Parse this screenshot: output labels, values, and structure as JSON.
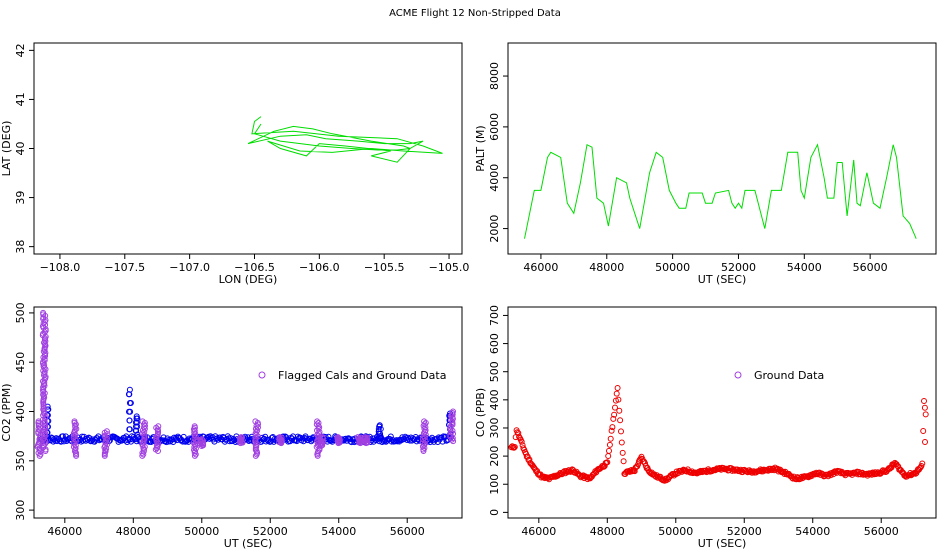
{
  "figure": {
    "title": "ACME Flight  12  Non-Stripped Data"
  },
  "colors": {
    "green": "#00dd00",
    "blue": "#0000ee",
    "purple": "#a040e0",
    "red": "#ee0000"
  },
  "chart_data": [
    {
      "type": "line",
      "xlabel": "LON (DEG)",
      "ylabel": "LAT (DEG)",
      "xlim": [
        -108.2,
        -104.9
      ],
      "ylim": [
        37.85,
        42.15
      ],
      "xticks": [
        -108.0,
        -107.5,
        -107.0,
        -106.5,
        -106.0,
        -105.5,
        -105.0
      ],
      "xtick_labels": [
        "−108.0",
        "−107.5",
        "−107.0",
        "−106.5",
        "−106.0",
        "−105.5",
        "−105.0"
      ],
      "yticks": [
        38,
        39,
        40,
        41,
        42
      ],
      "ytick_labels": [
        "38",
        "39",
        "40",
        "41",
        "42"
      ],
      "series": [
        {
          "color": "green",
          "points": [
            [
              -106.45,
              40.65
            ],
            [
              -106.5,
              40.55
            ],
            [
              -106.52,
              40.3
            ],
            [
              -106.2,
              40.35
            ],
            [
              -105.85,
              40.25
            ],
            [
              -105.4,
              40.2
            ],
            [
              -105.2,
              40.05
            ],
            [
              -105.05,
              39.9
            ],
            [
              -105.35,
              39.95
            ],
            [
              -105.6,
              40.0
            ],
            [
              -105.9,
              39.92
            ],
            [
              -106.15,
              39.95
            ],
            [
              -106.4,
              40.15
            ],
            [
              -106.3,
              40.0
            ],
            [
              -106.1,
              39.85
            ],
            [
              -106.0,
              40.1
            ],
            [
              -105.8,
              40.05
            ],
            [
              -105.45,
              39.95
            ],
            [
              -105.6,
              39.85
            ],
            [
              -105.4,
              39.72
            ],
            [
              -105.3,
              40.0
            ],
            [
              -105.2,
              40.15
            ],
            [
              -105.3,
              40.1
            ],
            [
              -105.5,
              40.1
            ],
            [
              -105.7,
              40.15
            ],
            [
              -105.95,
              40.2
            ],
            [
              -106.1,
              40.28
            ],
            [
              -106.3,
              40.25
            ],
            [
              -106.55,
              40.1
            ],
            [
              -106.35,
              40.35
            ],
            [
              -106.2,
              40.45
            ],
            [
              -106.05,
              40.4
            ],
            [
              -105.9,
              40.3
            ],
            [
              -105.6,
              40.15
            ],
            [
              -105.35,
              40.05
            ],
            [
              -105.3,
              40.0
            ],
            [
              -105.4,
              39.97
            ],
            [
              -105.55,
              39.97
            ],
            [
              -105.75,
              40.0
            ],
            [
              -106.0,
              40.05
            ],
            [
              -106.3,
              40.15
            ],
            [
              -106.5,
              40.3
            ],
            [
              -106.45,
              40.5
            ]
          ]
        }
      ]
    },
    {
      "type": "line",
      "xlabel": "UT (SEC)",
      "ylabel": "PALT (M)",
      "xlim": [
        45000,
        58000
      ],
      "ylim": [
        1000,
        9300
      ],
      "xticks": [
        46000,
        48000,
        50000,
        52000,
        54000,
        56000
      ],
      "xtick_labels": [
        "46000",
        "48000",
        "50000",
        "52000",
        "54000",
        "56000"
      ],
      "yticks": [
        2000,
        4000,
        6000,
        8000
      ],
      "ytick_labels": [
        "2000",
        "4000",
        "6000",
        "8000"
      ],
      "series": [
        {
          "color": "green",
          "points": [
            [
              45500,
              1600
            ],
            [
              45800,
              3500
            ],
            [
              46000,
              3500
            ],
            [
              46200,
              4800
            ],
            [
              46300,
              5000
            ],
            [
              46600,
              4800
            ],
            [
              46800,
              3000
            ],
            [
              47000,
              2600
            ],
            [
              47200,
              3800
            ],
            [
              47400,
              5300
            ],
            [
              47550,
              5200
            ],
            [
              47700,
              3200
            ],
            [
              47900,
              3000
            ],
            [
              48050,
              2100
            ],
            [
              48300,
              4000
            ],
            [
              48600,
              3800
            ],
            [
              48700,
              3200
            ],
            [
              49000,
              2000
            ],
            [
              49300,
              4200
            ],
            [
              49500,
              5000
            ],
            [
              49700,
              4800
            ],
            [
              49900,
              3500
            ],
            [
              50100,
              3000
            ],
            [
              50200,
              2800
            ],
            [
              50400,
              2800
            ],
            [
              50500,
              3400
            ],
            [
              50900,
              3400
            ],
            [
              51000,
              3000
            ],
            [
              51200,
              3000
            ],
            [
              51300,
              3400
            ],
            [
              51700,
              3500
            ],
            [
              51800,
              3000
            ],
            [
              51900,
              2800
            ],
            [
              52000,
              3000
            ],
            [
              52100,
              2800
            ],
            [
              52200,
              3500
            ],
            [
              52500,
              3500
            ],
            [
              52700,
              2500
            ],
            [
              52800,
              2000
            ],
            [
              53000,
              3500
            ],
            [
              53300,
              3500
            ],
            [
              53500,
              5000
            ],
            [
              53800,
              5000
            ],
            [
              53900,
              3500
            ],
            [
              54000,
              3200
            ],
            [
              54200,
              4800
            ],
            [
              54400,
              5300
            ],
            [
              54600,
              4000
            ],
            [
              54700,
              3200
            ],
            [
              54900,
              3200
            ],
            [
              55000,
              4600
            ],
            [
              55150,
              4600
            ],
            [
              55300,
              2500
            ],
            [
              55500,
              4700
            ],
            [
              55600,
              3000
            ],
            [
              55700,
              2900
            ],
            [
              55900,
              4200
            ],
            [
              56000,
              3600
            ],
            [
              56100,
              3000
            ],
            [
              56300,
              2800
            ],
            [
              56500,
              4000
            ],
            [
              56700,
              5300
            ],
            [
              56800,
              4800
            ],
            [
              57000,
              2500
            ],
            [
              57200,
              2200
            ],
            [
              57400,
              1600
            ]
          ]
        }
      ]
    },
    {
      "type": "scatter",
      "xlabel": "UT (SEC)",
      "ylabel": "CO2 (PPM)",
      "xlim": [
        45100,
        57600
      ],
      "ylim": [
        292,
        506
      ],
      "xticks": [
        46000,
        48000,
        50000,
        52000,
        54000,
        56000
      ],
      "xtick_labels": [
        "46000",
        "48000",
        "50000",
        "52000",
        "54000",
        "56000"
      ],
      "yticks": [
        300,
        350,
        400,
        450,
        500
      ],
      "ytick_labels": [
        "300",
        "350",
        "400",
        "450",
        "500"
      ],
      "legend": {
        "label": "Flagged Cals and Ground Data",
        "color": "purple",
        "placement": "top-right"
      },
      "series": [
        {
          "color": "blue",
          "baseline": 372,
          "x_range": [
            45300,
            57300
          ],
          "spikes": [
            [
              45500,
              405
            ],
            [
              47900,
              422
            ],
            [
              48100,
              395
            ],
            [
              55200,
              386
            ],
            [
              57250,
              398
            ]
          ]
        },
        {
          "name": "Flagged Cals and Ground Data",
          "color": "purple",
          "clusters": [
            [
              45250,
              355,
              390
            ],
            [
              45400,
              360,
              500
            ],
            [
              46300,
              355,
              390
            ],
            [
              47200,
              355,
              380
            ],
            [
              48300,
              355,
              390
            ],
            [
              48700,
              360,
              385
            ],
            [
              49800,
              355,
              385
            ],
            [
              50000,
              365,
              372
            ],
            [
              51150,
              368,
              374
            ],
            [
              51600,
              355,
              390
            ],
            [
              52300,
              368,
              374
            ],
            [
              53400,
              355,
              390
            ],
            [
              53500,
              365,
              374
            ],
            [
              54000,
              368,
              374
            ],
            [
              54600,
              368,
              374
            ],
            [
              54800,
              368,
              374
            ],
            [
              56500,
              360,
              390
            ],
            [
              57300,
              370,
              400
            ]
          ]
        }
      ]
    },
    {
      "type": "scatter",
      "xlabel": "UT (SEC)",
      "ylabel": "CO (PPB)",
      "xlim": [
        45100,
        57600
      ],
      "ylim": [
        -20,
        730
      ],
      "xticks": [
        46000,
        48000,
        50000,
        52000,
        54000,
        56000
      ],
      "xtick_labels": [
        "46000",
        "48000",
        "50000",
        "52000",
        "54000",
        "56000"
      ],
      "yticks": [
        0,
        100,
        200,
        300,
        400,
        500,
        600,
        700
      ],
      "ytick_labels": [
        "0",
        "100",
        "200",
        "300",
        "400",
        "500",
        "600",
        "700"
      ],
      "legend": {
        "label": "Ground Data",
        "color": "purple",
        "placement": "top-right"
      },
      "series": [
        {
          "color": "red",
          "points": [
            [
              45200,
              230
            ],
            [
              45300,
              235
            ],
            [
              45350,
              295
            ],
            [
              45550,
              230
            ],
            [
              45650,
              200
            ],
            [
              45800,
              170
            ],
            [
              45900,
              150
            ],
            [
              46100,
              125
            ],
            [
              46300,
              120
            ],
            [
              46500,
              130
            ],
            [
              46800,
              145
            ],
            [
              47000,
              150
            ],
            [
              47200,
              130
            ],
            [
              47500,
              120
            ],
            [
              47700,
              150
            ],
            [
              48000,
              175
            ],
            [
              48300,
              440
            ],
            [
              48500,
              140
            ],
            [
              48800,
              150
            ],
            [
              49000,
              195
            ],
            [
              49200,
              150
            ],
            [
              49400,
              130
            ],
            [
              49700,
              115
            ],
            [
              50000,
              140
            ],
            [
              50300,
              150
            ],
            [
              50600,
              140
            ],
            [
              51000,
              150
            ],
            [
              51400,
              155
            ],
            [
              51800,
              150
            ],
            [
              52200,
              145
            ],
            [
              52600,
              150
            ],
            [
              52900,
              155
            ],
            [
              53200,
              140
            ],
            [
              53500,
              120
            ],
            [
              53800,
              125
            ],
            [
              54100,
              140
            ],
            [
              54400,
              130
            ],
            [
              54700,
              145
            ],
            [
              55000,
              135
            ],
            [
              55300,
              140
            ],
            [
              55600,
              135
            ],
            [
              55900,
              140
            ],
            [
              56200,
              150
            ],
            [
              56400,
              175
            ],
            [
              56700,
              130
            ],
            [
              57000,
              140
            ],
            [
              57150,
              160
            ],
            [
              57200,
              170
            ],
            [
              57250,
              400
            ],
            [
              57300,
              350
            ],
            [
              57280,
              250
            ]
          ]
        }
      ]
    }
  ]
}
